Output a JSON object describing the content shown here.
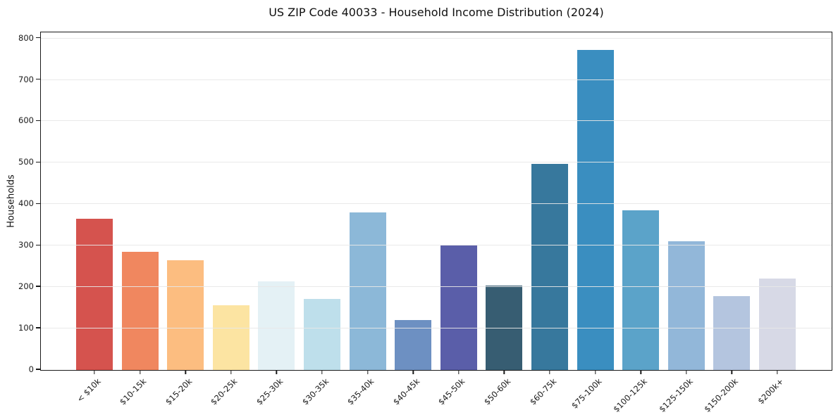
{
  "title": "US ZIP Code 40033 - Household Income Distribution (2024)",
  "chart_data": {
    "type": "bar",
    "title": "US ZIP Code 40033 - Household Income Distribution (2024)",
    "xlabel": "",
    "ylabel": "Households",
    "ylim": [
      0,
      813
    ],
    "yticks": [
      0,
      100,
      200,
      300,
      400,
      500,
      600,
      700,
      800
    ],
    "grid": "horizontal-light-gray-over-bars",
    "legend": "none",
    "categories": [
      "< $10k",
      "$10-15k",
      "$15-20k",
      "$20-25k",
      "$25-30k",
      "$30-35k",
      "$35-40k",
      "$40-45k",
      "$45-50k",
      "$50-60k",
      "$60-75k",
      "$75-100k",
      "$100-125k",
      "$125-150k",
      "$150-200k",
      "$200k+"
    ],
    "values": [
      365,
      285,
      264,
      156,
      214,
      172,
      380,
      121,
      300,
      203,
      497,
      773,
      386,
      311,
      179,
      220
    ],
    "bar_colors": [
      "#d5534e",
      "#f0875f",
      "#fcbd80",
      "#fce4a2",
      "#e4f1f5",
      "#bedfeb",
      "#8cb8d8",
      "#6d90c2",
      "#5a5ea9",
      "#375d72",
      "#37789d",
      "#3a8ec0",
      "#5ba3c9",
      "#92b7d9",
      "#b4c5df",
      "#d7d9e6"
    ]
  }
}
